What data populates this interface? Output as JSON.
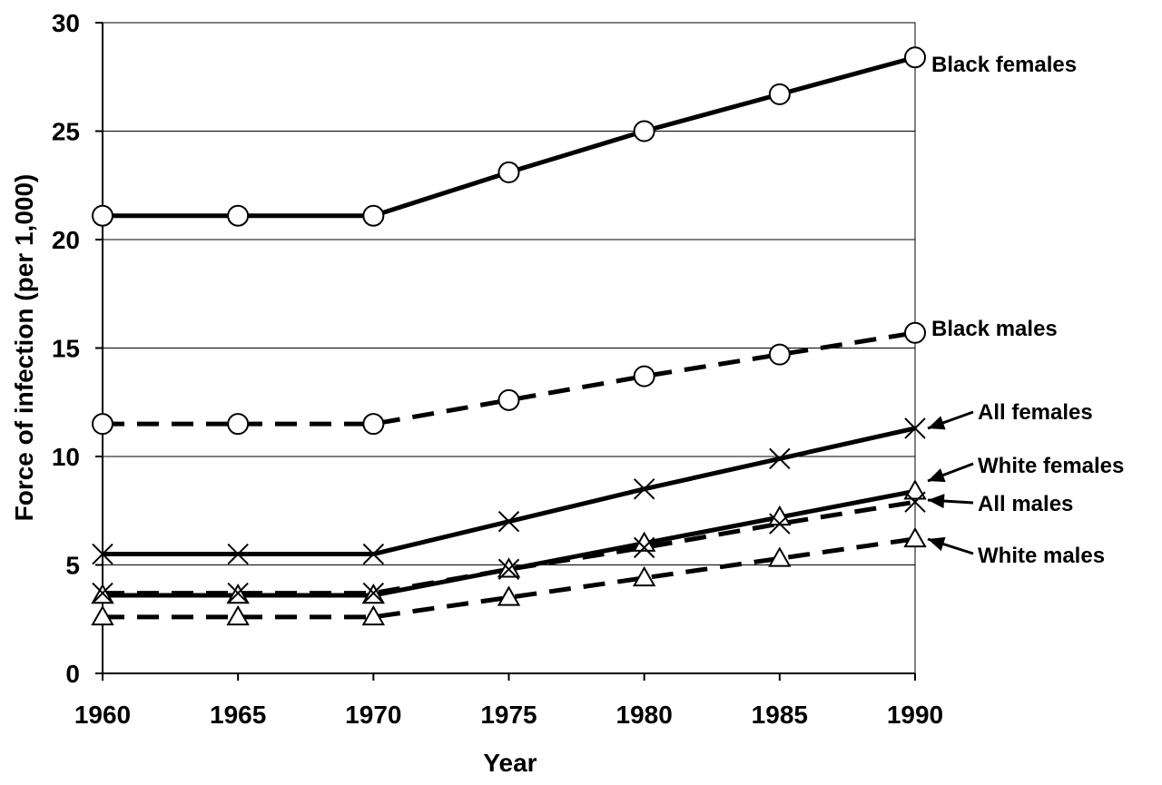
{
  "chart_data": {
    "type": "line",
    "xlabel": "Year",
    "ylabel": "Force of infection (per 1,000)",
    "x": [
      1960,
      1965,
      1970,
      1975,
      1980,
      1985,
      1990
    ],
    "ylim": [
      0,
      30
    ],
    "yticks": [
      0,
      5,
      10,
      15,
      20,
      25,
      30
    ],
    "grid": "horizontal",
    "series": [
      {
        "name": "Black  females",
        "style": "solid",
        "marker": "circle",
        "values": [
          21.1,
          21.1,
          21.1,
          23.1,
          25.0,
          26.7,
          28.4
        ]
      },
      {
        "name": "Black males",
        "style": "dashed",
        "marker": "circle",
        "values": [
          11.5,
          11.5,
          11.5,
          12.6,
          13.7,
          14.7,
          15.7
        ]
      },
      {
        "name": "All  females",
        "style": "solid",
        "marker": "x",
        "values": [
          5.5,
          5.5,
          5.5,
          7.0,
          8.5,
          9.9,
          11.3
        ]
      },
      {
        "name": "White  females",
        "style": "solid",
        "marker": "triangle",
        "values": [
          3.6,
          3.6,
          3.6,
          4.8,
          6.0,
          7.2,
          8.4
        ]
      },
      {
        "name": "All males",
        "style": "dashed",
        "marker": "x",
        "values": [
          3.7,
          3.7,
          3.7,
          4.8,
          5.8,
          6.9,
          7.9
        ]
      },
      {
        "name": "White males",
        "style": "dashed",
        "marker": "triangle",
        "values": [
          2.6,
          2.6,
          2.6,
          3.5,
          4.4,
          5.3,
          6.2
        ]
      }
    ],
    "colors": {
      "line": "#000000",
      "grid": "#000000",
      "background": "#ffffff"
    }
  }
}
